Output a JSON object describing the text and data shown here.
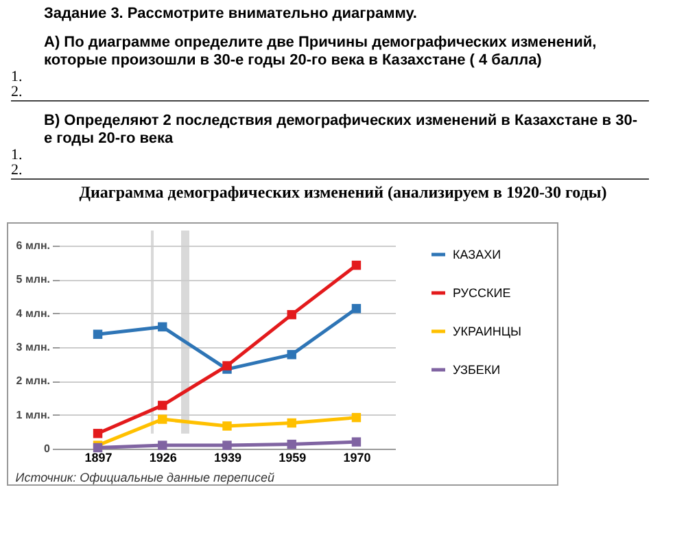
{
  "chart_data": {
    "type": "line",
    "title": "Диаграмма демографических изменений  (анализируем  в 1920-30 годы)",
    "annotations": [
      "Задание 3.  Рассмотрите внимательно диаграмму.",
      "А) По диаграмме определите две Причины демографических изменений, которые произошли в 30-е годы 20-го века в Казахстане  ( 4 балла)",
      "1.",
      "2.",
      "В) Определяют 2 последствия демографических изменений в Казахстане в 30-е годы 20-го века",
      "1.",
      "2.",
      "Источник: Официальные данные переписей"
    ],
    "categories": [
      "1897",
      "1926",
      "1939",
      "1959",
      "1970"
    ],
    "series": [
      {
        "name": "КАЗАХИ",
        "color": "#2e75b6",
        "values": [
          3.38,
          3.6,
          2.35,
          2.78,
          4.14
        ]
      },
      {
        "name": "РУССКИЕ",
        "color": "#e31a1c",
        "values": [
          0.45,
          1.28,
          2.45,
          3.96,
          5.42
        ]
      },
      {
        "name": "УКРАИНЦЫ",
        "color": "#ffc000",
        "values": [
          0.1,
          0.87,
          0.67,
          0.76,
          0.92
        ]
      },
      {
        "name": "УЗБЕКИ",
        "color": "#8064a2",
        "values": [
          0.03,
          0.1,
          0.1,
          0.13,
          0.2
        ]
      }
    ],
    "ylim": [
      0,
      6
    ],
    "yticks": [
      0,
      {
        "value": 1,
        "label": "1 млн."
      },
      {
        "value": 2,
        "label": "2 млн."
      },
      {
        "value": 3,
        "label": "3 млн."
      },
      {
        "value": 4,
        "label": "4 млн."
      },
      {
        "value": 5,
        "label": "5 млн."
      },
      {
        "value": 6,
        "label": "6 млн."
      }
    ],
    "grid": "y",
    "legend": "right",
    "marker": "square",
    "line_style": "solid"
  }
}
